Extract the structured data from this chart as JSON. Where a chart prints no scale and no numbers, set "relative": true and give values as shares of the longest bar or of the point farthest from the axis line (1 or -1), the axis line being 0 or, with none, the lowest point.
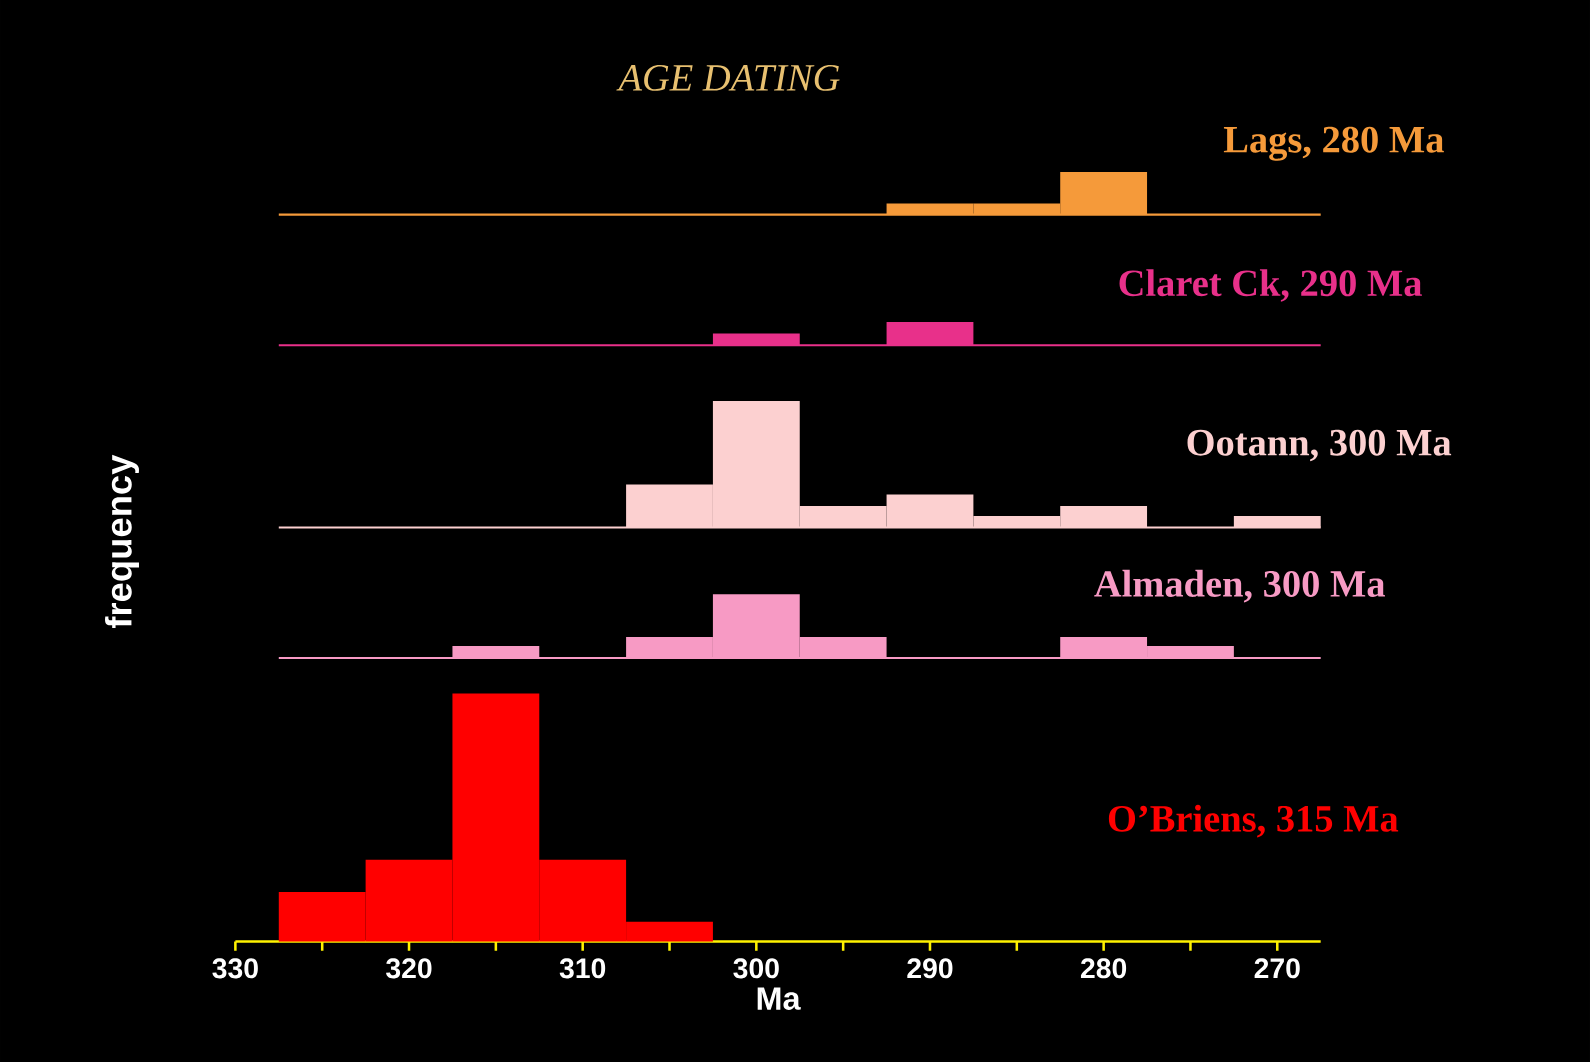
{
  "chart_data": [
    {
      "type": "bar",
      "title": "AGE DATING",
      "annotations": [
        "Lags, 280 Ma"
      ],
      "relative": true,
      "color": "#f59a3a",
      "xlim": [
        330,
        267.5
      ],
      "tick_labels": false,
      "x": [
        290,
        285,
        280
      ],
      "values": [
        0.26,
        0.26,
        1
      ]
    },
    {
      "type": "bar",
      "annotations": [
        "Claret Ck, 290 Ma"
      ],
      "relative": true,
      "color": "#e8308a",
      "xlim": [
        330,
        267.5
      ],
      "tick_labels": false,
      "x": [
        300,
        290
      ],
      "values": [
        0.5,
        1
      ]
    },
    {
      "type": "bar",
      "annotations": [
        "Ootann, 300 Ma"
      ],
      "relative": true,
      "color": "#fcd0d0",
      "xlim": [
        330,
        267.5
      ],
      "tick_labels": false,
      "x": [
        305,
        300,
        295,
        290,
        285,
        280,
        270
      ],
      "values": [
        0.34,
        1,
        0.17,
        0.26,
        0.09,
        0.17,
        0.09
      ]
    },
    {
      "type": "bar",
      "annotations": [
        "Almaden, 300 Ma"
      ],
      "relative": true,
      "color": "#f79ac4",
      "xlim": [
        330,
        267.5
      ],
      "tick_labels": false,
      "x": [
        315,
        305,
        300,
        295,
        280,
        275
      ],
      "values": [
        0.19,
        0.33,
        1,
        0.33,
        0.33,
        0.19
      ]
    },
    {
      "type": "bar",
      "annotations": [
        "O’Briens, 315 Ma"
      ],
      "xlabel": "Ma",
      "ylabel": "frequency",
      "relative": true,
      "color": "#ff0000",
      "xlim": [
        330,
        267.5
      ],
      "tick_labels": "x",
      "xticks": [
        {
          "value": 330,
          "label": "330"
        },
        {
          "value": 325,
          "label": null
        },
        {
          "value": 320,
          "label": "320"
        },
        {
          "value": 315,
          "label": null
        },
        {
          "value": 310,
          "label": "310"
        },
        {
          "value": 305,
          "label": null
        },
        {
          "value": 300,
          "label": "300"
        },
        {
          "value": 295,
          "label": null
        },
        {
          "value": 290,
          "label": "290"
        },
        {
          "value": 285,
          "label": null
        },
        {
          "value": 280,
          "label": "280"
        },
        {
          "value": 275,
          "label": null
        },
        {
          "value": 270,
          "label": "270"
        }
      ],
      "x": [
        325,
        320,
        315,
        310,
        305
      ],
      "values": [
        0.2,
        0.33,
        1,
        0.33,
        0.08
      ]
    }
  ]
}
